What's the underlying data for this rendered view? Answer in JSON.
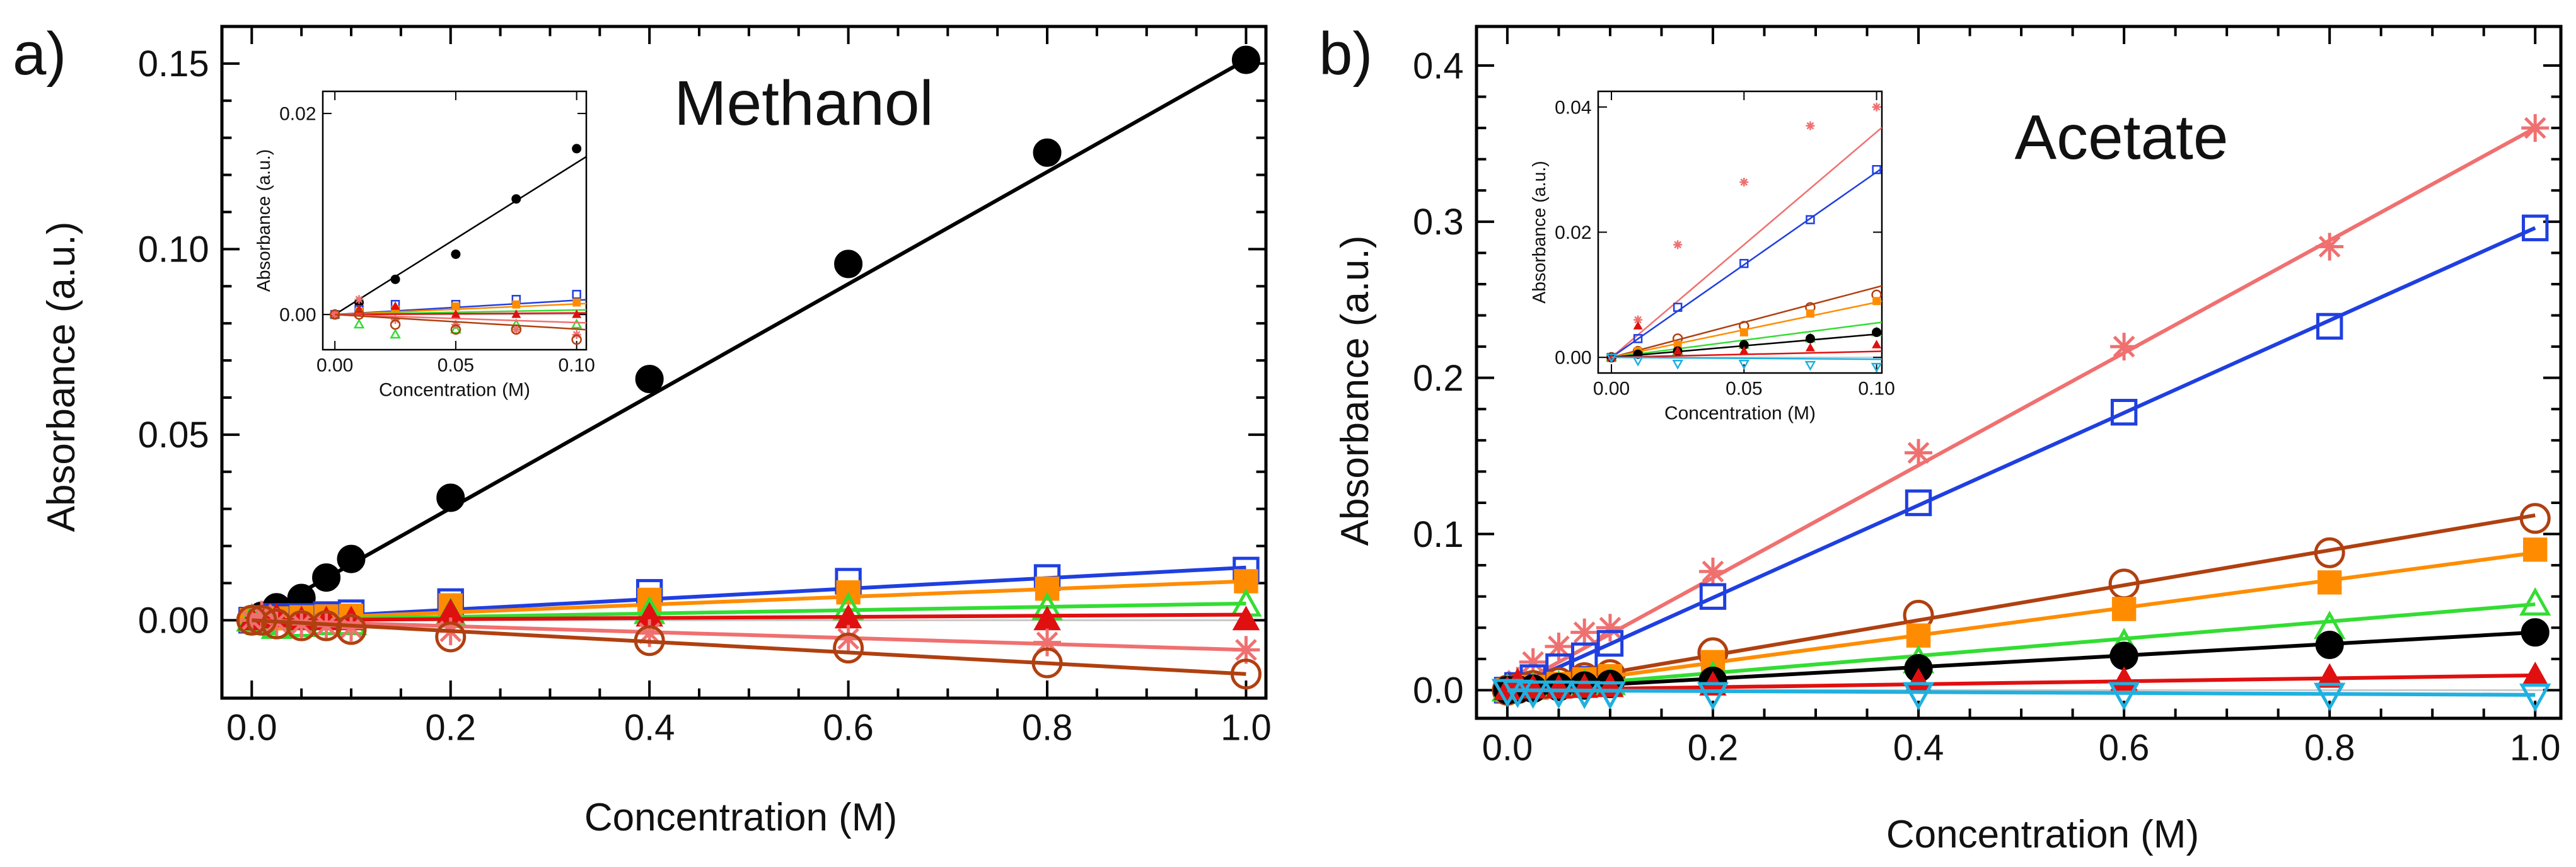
{
  "chart_data": [
    {
      "type": "scatter",
      "panel_label": "a)",
      "title": "Methanol",
      "xlabel": "Concentration (M)",
      "ylabel": "Absorbance (a.u.)",
      "xlim": [
        -0.03,
        1.02
      ],
      "ylim": [
        -0.021,
        0.16
      ],
      "xticks": [
        0.0,
        0.2,
        0.4,
        0.6,
        0.8,
        1.0
      ],
      "xtick_labels": [
        "0.0",
        "0.2",
        "0.4",
        "0.6",
        "0.8",
        "1.0"
      ],
      "yticks": [
        0.0,
        0.05,
        0.1,
        0.15
      ],
      "ytick_labels": [
        "0.00",
        "0.05",
        "0.10",
        "0.15"
      ],
      "x": [
        0,
        0.01,
        0.025,
        0.05,
        0.075,
        0.1,
        0.2,
        0.4,
        0.6,
        0.8,
        1.0
      ],
      "series": [
        {
          "name": "black",
          "color": "#000000",
          "marker": "circle-filled",
          "values": [
            0,
            0.0012,
            0.0035,
            0.006,
            0.0115,
            0.0165,
            0.033,
            0.065,
            0.096,
            0.126,
            0.151
          ],
          "fit": [
            0,
            0.151
          ]
        },
        {
          "name": "blue",
          "color": "#1f3fe0",
          "marker": "square-open",
          "values": [
            0,
            0.0005,
            0.001,
            0.001,
            0.0015,
            0.002,
            0.005,
            0.0075,
            0.0105,
            0.0115,
            0.0135
          ],
          "fit": [
            0.0,
            0.0142
          ]
        },
        {
          "name": "orange",
          "color": "#ff8c00",
          "marker": "square-filled",
          "values": [
            0,
            0.0003,
            0.0005,
            0.0008,
            0.001,
            0.0012,
            0.004,
            0.0055,
            0.0075,
            0.0085,
            0.0105
          ],
          "fit": [
            0,
            0.0105
          ]
        },
        {
          "name": "green",
          "color": "#33dd33",
          "marker": "triangle-open",
          "values": [
            0,
            -0.001,
            -0.002,
            -0.0015,
            -0.001,
            -0.001,
            0.0015,
            0.002,
            0.003,
            0.003,
            0.004
          ],
          "fit": [
            0,
            0.0045
          ]
        },
        {
          "name": "red",
          "color": "#e01010",
          "marker": "triangle-filled",
          "values": [
            0,
            0.0005,
            0.0008,
            0.0,
            0.0,
            0.0,
            0.002,
            0.001,
            0.0005,
            0.0,
            0.0
          ],
          "fit": [
            0,
            0.0015
          ]
        },
        {
          "name": "pink",
          "color": "#f07070",
          "marker": "star",
          "values": [
            0,
            0.0015,
            -0.0005,
            -0.001,
            -0.0015,
            -0.002,
            -0.003,
            -0.0035,
            -0.005,
            -0.006,
            -0.008
          ],
          "fit": [
            0,
            -0.008
          ]
        },
        {
          "name": "brown",
          "color": "#b04010",
          "marker": "circle-open",
          "values": [
            0,
            0.0,
            -0.001,
            -0.0015,
            -0.0015,
            -0.0025,
            -0.0045,
            -0.0055,
            -0.0075,
            -0.0115,
            -0.0145
          ],
          "fit": [
            0,
            -0.0145
          ]
        }
      ],
      "inset": {
        "xlabel": "Concentration (M)",
        "ylabel": "Absorbance (a.u.)",
        "xlim": [
          -0.005,
          0.104
        ],
        "ylim": [
          -0.0035,
          0.0222
        ],
        "xticks": [
          0.0,
          0.05,
          0.1
        ],
        "xtick_labels": [
          "0.00",
          "0.05",
          "0.10"
        ],
        "yticks": [
          0.0,
          0.02
        ],
        "ytick_labels": [
          "0.00",
          "0.02"
        ]
      }
    },
    {
      "type": "scatter",
      "panel_label": "b)",
      "title": "Acetate",
      "xlabel": "Concentration (M)",
      "ylabel": "Absorbance (a.u.)",
      "xlim": [
        -0.03,
        1.025
      ],
      "ylim": [
        -0.018,
        0.425
      ],
      "xticks": [
        0.0,
        0.2,
        0.4,
        0.6,
        0.8,
        1.0
      ],
      "xtick_labels": [
        "0.0",
        "0.2",
        "0.4",
        "0.6",
        "0.8",
        "1.0"
      ],
      "yticks": [
        0.0,
        0.1,
        0.2,
        0.3,
        0.4
      ],
      "ytick_labels": [
        "0.0",
        "0.1",
        "0.2",
        "0.3",
        "0.4"
      ],
      "x": [
        0,
        0.01,
        0.025,
        0.05,
        0.075,
        0.1,
        0.2,
        0.4,
        0.6,
        0.8,
        1.0
      ],
      "series": [
        {
          "name": "pink",
          "color": "#f07070",
          "marker": "star",
          "values": [
            0,
            0.006,
            0.018,
            0.028,
            0.037,
            0.04,
            0.076,
            0.152,
            0.22,
            0.284,
            0.36
          ],
          "fit": [
            0,
            0.36
          ]
        },
        {
          "name": "blue",
          "color": "#1f3fe0",
          "marker": "square-open",
          "values": [
            0,
            0.003,
            0.008,
            0.015,
            0.022,
            0.03,
            0.06,
            0.12,
            0.178,
            0.233,
            0.296
          ],
          "fit": [
            0,
            0.296
          ]
        },
        {
          "name": "brown",
          "color": "#b04010",
          "marker": "circle-open",
          "values": [
            0,
            0.001,
            0.003,
            0.005,
            0.008,
            0.01,
            0.024,
            0.048,
            0.068,
            0.088,
            0.11
          ],
          "fit": [
            0,
            0.112
          ]
        },
        {
          "name": "orange",
          "color": "#ff8c00",
          "marker": "square-filled",
          "values": [
            0,
            0.001,
            0.002,
            0.004,
            0.007,
            0.009,
            0.018,
            0.035,
            0.052,
            0.069,
            0.09
          ],
          "fit": [
            0,
            0.088
          ]
        },
        {
          "name": "green",
          "color": "#33dd33",
          "marker": "triangle-open",
          "values": [
            0,
            0.0005,
            0.001,
            0.002,
            0.003,
            0.004,
            0.008,
            0.018,
            0.029,
            0.04,
            0.055
          ],
          "fit": [
            0,
            0.055
          ]
        },
        {
          "name": "black",
          "color": "#000000",
          "marker": "circle-filled",
          "values": [
            0,
            0.0005,
            0.001,
            0.002,
            0.003,
            0.004,
            0.006,
            0.014,
            0.022,
            0.029,
            0.037
          ],
          "fit": [
            0,
            0.037
          ]
        },
        {
          "name": "red",
          "color": "#e01010",
          "marker": "triangle-filled",
          "values": [
            0,
            0.005,
            0.001,
            0.001,
            0.0015,
            0.002,
            0.003,
            0.005,
            0.006,
            0.008,
            0.009
          ],
          "fit": [
            0,
            0.0095
          ]
        },
        {
          "name": "cyan",
          "color": "#20b0e0",
          "marker": "triangle-down-open",
          "values": [
            0,
            -0.0005,
            -0.001,
            -0.001,
            -0.0012,
            -0.0015,
            -0.002,
            -0.002,
            -0.002,
            -0.0025,
            -0.003
          ],
          "fit": [
            0,
            -0.003
          ]
        }
      ],
      "inset": {
        "xlabel": "Concentration (M)",
        "ylabel": "Absorbance (a.u.)",
        "xlim": [
          -0.005,
          0.102
        ],
        "ylim": [
          -0.0025,
          0.0425
        ],
        "xticks": [
          0.0,
          0.05,
          0.1
        ],
        "xtick_labels": [
          "0.00",
          "0.05",
          "0.10"
        ],
        "yticks": [
          0.0,
          0.02,
          0.04
        ],
        "ytick_labels": [
          "0.00",
          "0.02",
          "0.04"
        ]
      }
    }
  ]
}
